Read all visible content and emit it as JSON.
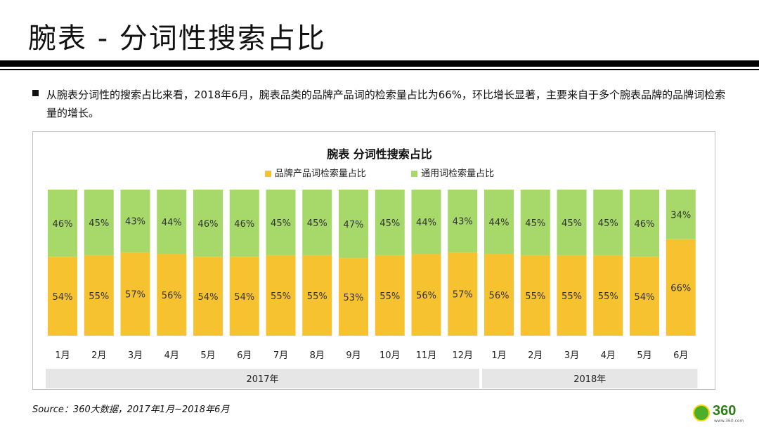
{
  "header": {
    "title": "腕表 - 分词性搜索占比"
  },
  "summary": {
    "text": "从腕表分词性的搜索占比来看，2018年6月，腕表品类的品牌产品词的检索量占比为66%，环比增长显著，主要来自于多个腕表品牌的品牌词检索量的增长。"
  },
  "footer": {
    "source": "Source：360大数据，2017年1月~2018年6月",
    "logo_text": "360",
    "logo_sub": "www.360.com"
  },
  "colors": {
    "brand": "#f7c22f",
    "generic": "#a6d96a",
    "axis_band": "#e6e6e6"
  },
  "chart_data": {
    "type": "bar",
    "stacked": true,
    "title": "腕表 分词性搜索占比",
    "legend_position": "top",
    "categories": [
      "1月",
      "2月",
      "3月",
      "4月",
      "5月",
      "6月",
      "7月",
      "8月",
      "9月",
      "10月",
      "11月",
      "12月",
      "1月",
      "2月",
      "3月",
      "4月",
      "5月",
      "6月"
    ],
    "groups": [
      {
        "label": "2017年",
        "count": 12
      },
      {
        "label": "2018年",
        "count": 6
      }
    ],
    "series": [
      {
        "name": "品牌产品词检索量占比",
        "color": "#f7c22f",
        "values": [
          54,
          55,
          57,
          56,
          54,
          54,
          55,
          55,
          53,
          55,
          56,
          57,
          56,
          55,
          55,
          55,
          54,
          66
        ]
      },
      {
        "name": "通用词检索量占比",
        "color": "#a6d96a",
        "values": [
          46,
          45,
          43,
          44,
          46,
          46,
          45,
          45,
          47,
          45,
          44,
          43,
          44,
          45,
          45,
          45,
          46,
          34
        ]
      }
    ],
    "ylim": [
      0,
      100
    ],
    "unit": "%"
  }
}
